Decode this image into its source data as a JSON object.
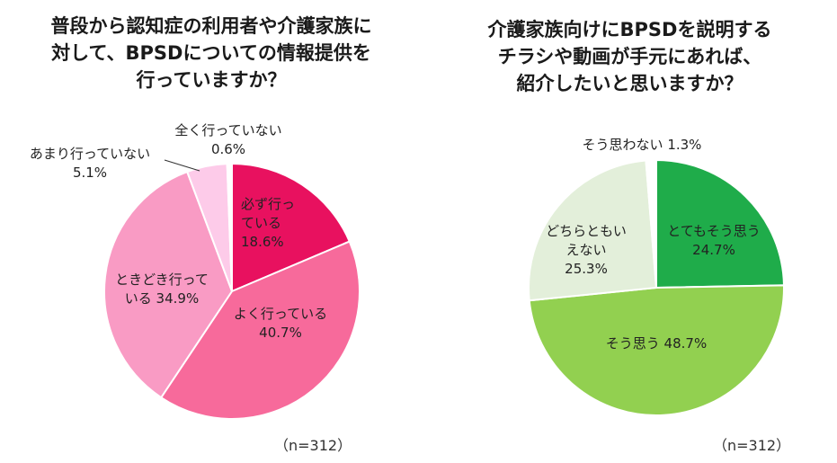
{
  "left": {
    "title": "普段から認知症の利用者や介護家族に\n対して、BPSDについての情報提供を\n行っていますか？",
    "n_label": "（n=312）",
    "chart_data": {
      "type": "pie",
      "title": "普段から認知症の利用者や介護家族に対して、BPSDについての情報提供を行っていますか？",
      "slices": [
        {
          "label": "必ず行っている",
          "value": 18.6,
          "color": "#e8115f",
          "text_lines": [
            "必ず行っ",
            "ている",
            "18.6%"
          ]
        },
        {
          "label": "よく行っている",
          "value": 40.7,
          "color": "#f76a9b",
          "text_lines": [
            "よく行っている",
            "40.7%"
          ]
        },
        {
          "label": "ときどき行っている",
          "value": 34.9,
          "color": "#f99bc4",
          "text_lines": [
            "ときどき行って",
            "いる 34.9%"
          ]
        },
        {
          "label": "あまり行っていない",
          "value": 5.1,
          "color": "#fdcbe9",
          "text_lines": [
            "あまり行っていない",
            "5.1%"
          ]
        },
        {
          "label": "全く行っていない",
          "value": 0.6,
          "color": "#ffffff",
          "text_lines": [
            "全く行っていない",
            "0.6%"
          ]
        }
      ]
    }
  },
  "right": {
    "title": "介護家族向けにBPSDを説明する\nチラシや動画が手元にあれば、\n紹介したいと思いますか？",
    "n_label": "（n=312）",
    "chart_data": {
      "type": "pie",
      "title": "介護家族向けにBPSDを説明するチラシや動画が手元にあれば、紹介したいと思いますか？",
      "slices": [
        {
          "label": "とてもそう思う",
          "value": 24.7,
          "color": "#1fac4a",
          "text_lines": [
            "とてもそう思う",
            "24.7%"
          ]
        },
        {
          "label": "そう思う",
          "value": 48.7,
          "color": "#92d050",
          "text_lines": [
            "そう思う 48.7%"
          ]
        },
        {
          "label": "どちらともいえない",
          "value": 25.3,
          "color": "#e3efda",
          "text_lines": [
            "どちらともい",
            "えない",
            "25.3%"
          ]
        },
        {
          "label": "そう思わない",
          "value": 1.3,
          "color": "#ffffff",
          "text_lines": [
            "そう思わない 1.3%"
          ]
        }
      ]
    }
  }
}
